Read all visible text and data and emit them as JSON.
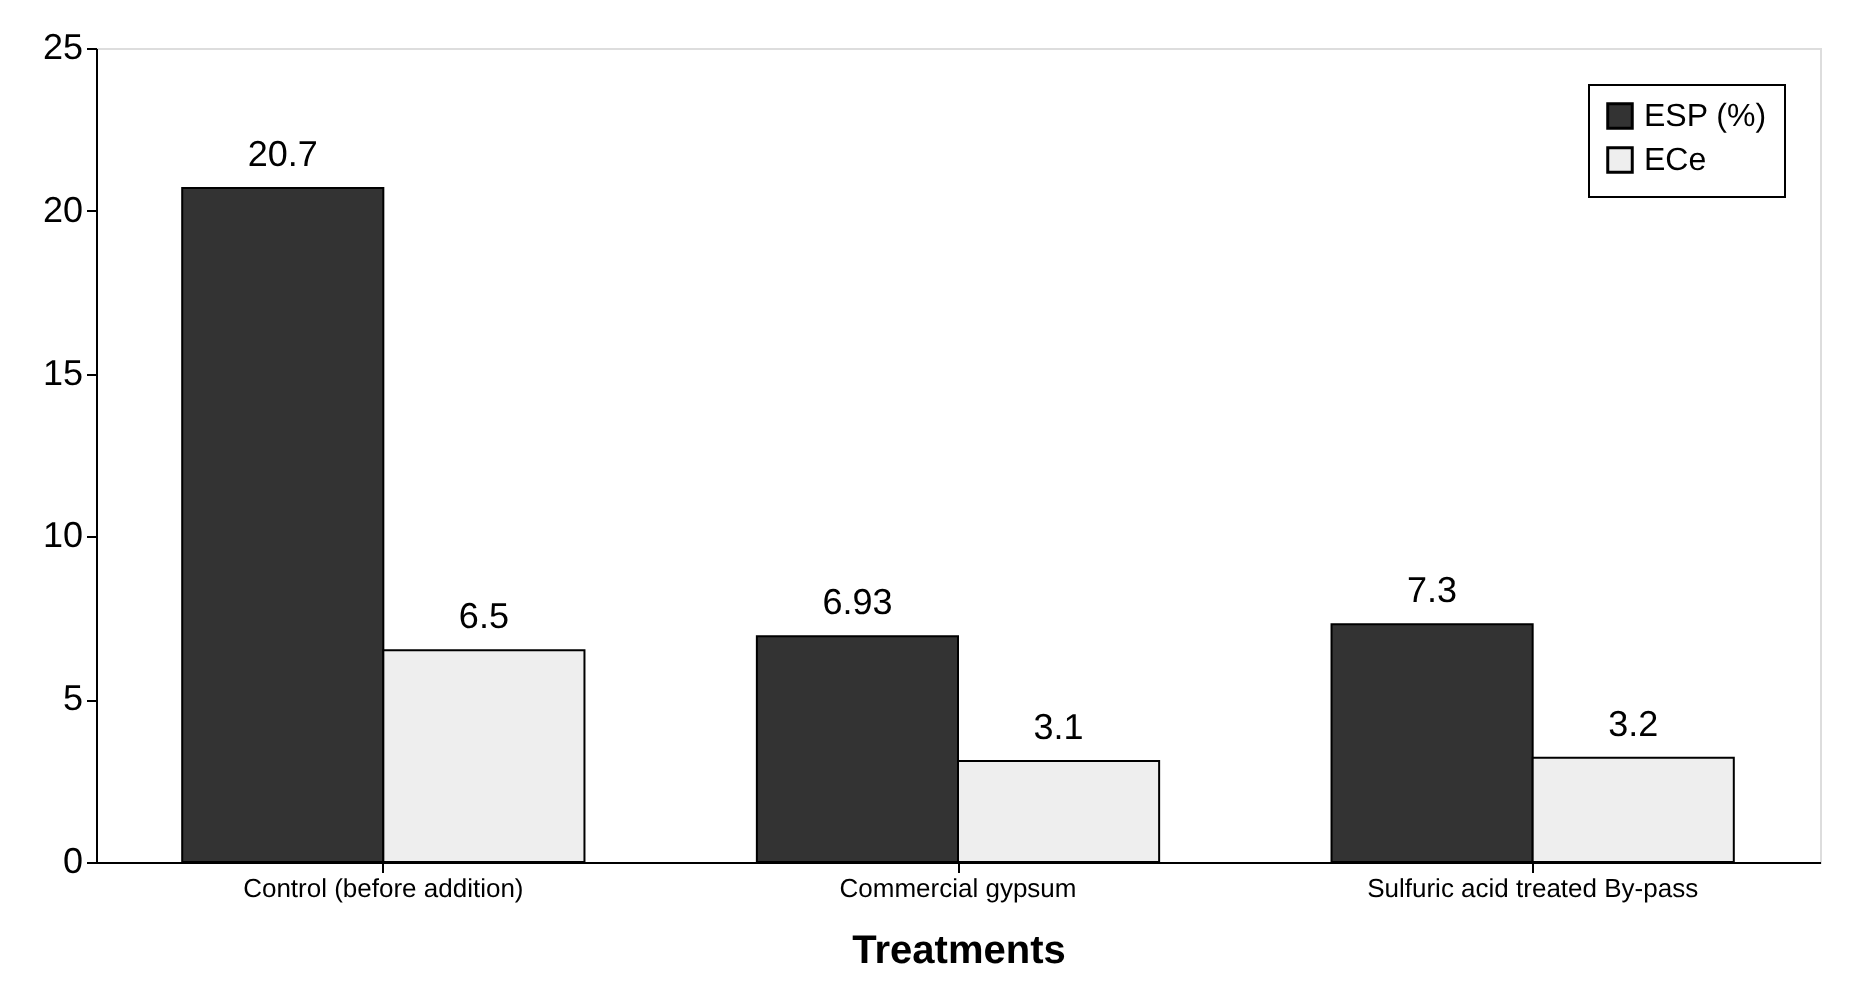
{
  "chart_data": {
    "type": "bar",
    "xlabel": "Treatments",
    "categories": [
      "Control (before addition)",
      "Commercial gypsum",
      "Sulfuric acid treated By-pass"
    ],
    "series": [
      {
        "name": "ESP (%)",
        "color": "#333333",
        "values": [
          20.7,
          6.93,
          7.3
        ]
      },
      {
        "name": "ECe",
        "color": "#eeeeee",
        "values": [
          6.5,
          3.1,
          3.2
        ]
      }
    ],
    "ylim": [
      0,
      25
    ],
    "yticks": [
      0,
      5,
      10,
      15,
      20,
      25
    ],
    "grid": false,
    "legend": "top right",
    "data_labels": true
  }
}
